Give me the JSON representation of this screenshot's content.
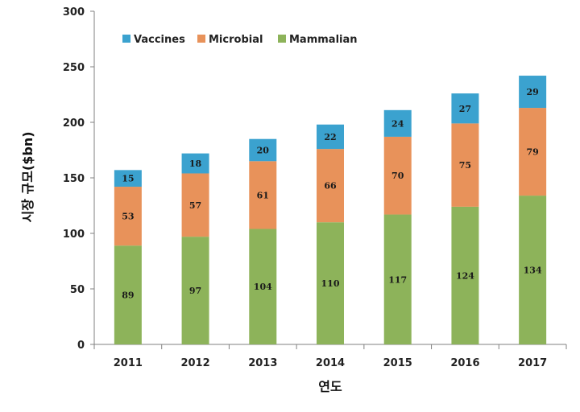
{
  "chart_data": {
    "type": "bar",
    "stacked": true,
    "categories": [
      "2011",
      "2012",
      "2013",
      "2014",
      "2015",
      "2016",
      "2017"
    ],
    "series": [
      {
        "name": "Mammalian",
        "color": "#8db35a",
        "values": [
          89,
          97,
          104,
          110,
          117,
          124,
          134
        ]
      },
      {
        "name": "Microbial",
        "color": "#e8925a",
        "values": [
          53,
          57,
          61,
          66,
          70,
          75,
          79
        ]
      },
      {
        "name": "Vaccines",
        "color": "#3ba2cf",
        "values": [
          15,
          18,
          20,
          22,
          24,
          27,
          29
        ]
      }
    ],
    "legend_order": [
      "Vaccines",
      "Microbial",
      "Mammalian"
    ],
    "legend_position": "top-left",
    "xlabel": "연도",
    "ylabel": "시장 규모($bn)",
    "ylim": [
      0,
      300
    ],
    "yticks": [
      0,
      50,
      100,
      150,
      200,
      250,
      300
    ],
    "grid": false
  }
}
